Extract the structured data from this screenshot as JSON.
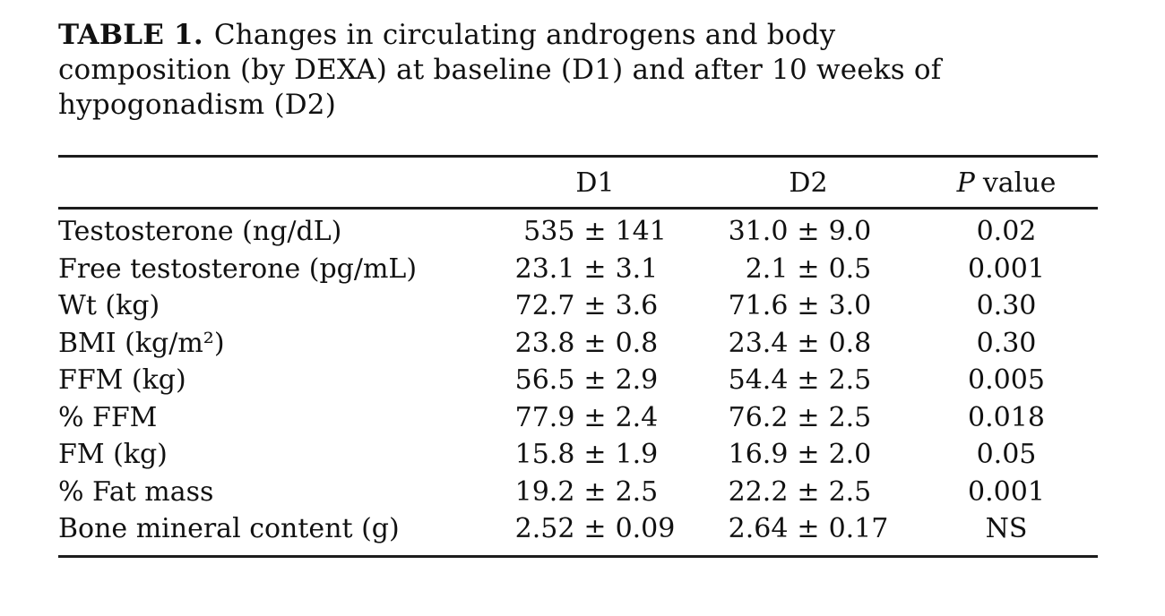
{
  "page": {
    "background": "#ffffff",
    "text_color": "#111111",
    "rule_color": "#1c1c1c"
  },
  "title": {
    "label": "TABLE 1.",
    "lines": [
      "Changes in circulating androgens and body",
      "composition (by DEXA) at baseline (D1) and after 10 weeks of",
      "hypogonadism (D2)"
    ]
  },
  "table": {
    "header": {
      "d1": "D1",
      "d2": "D2",
      "p_italic": "P",
      "p_rest": "value"
    },
    "rows": [
      {
        "label": "Testosterone (ng/dL)",
        "d1": "535 ± 141",
        "d2": "31.0 ± 9.0",
        "p": "0.02"
      },
      {
        "label": "Free testosterone (pg/mL)",
        "d1": "23.1 ± 3.1",
        "d2": "2.1 ± 0.5",
        "p": "0.001"
      },
      {
        "label": "Wt (kg)",
        "d1": "72.7 ± 3.6",
        "d2": "71.6 ± 3.0",
        "p": "0.30"
      },
      {
        "label": "BMI (kg/m²)",
        "d1": "23.8 ± 0.8",
        "d2": "23.4 ± 0.8",
        "p": "0.30"
      },
      {
        "label": "FFM (kg)",
        "d1": "56.5 ± 2.9",
        "d2": "54.4 ± 2.5",
        "p": "0.005"
      },
      {
        "label": "% FFM",
        "d1": "77.9 ± 2.4",
        "d2": "76.2 ± 2.5",
        "p": "0.018"
      },
      {
        "label": "FM (kg)",
        "d1": "15.8 ± 1.9",
        "d2": "16.9 ± 2.0",
        "p": "0.05"
      },
      {
        "label": "% Fat mass",
        "d1": "19.2 ± 2.5",
        "d2": "22.2 ± 2.5",
        "p": "0.001"
      },
      {
        "label": "Bone mineral content (g)",
        "d1": "2.52 ± 0.09",
        "d2": "2.64 ± 0.17",
        "p": "NS"
      }
    ]
  }
}
